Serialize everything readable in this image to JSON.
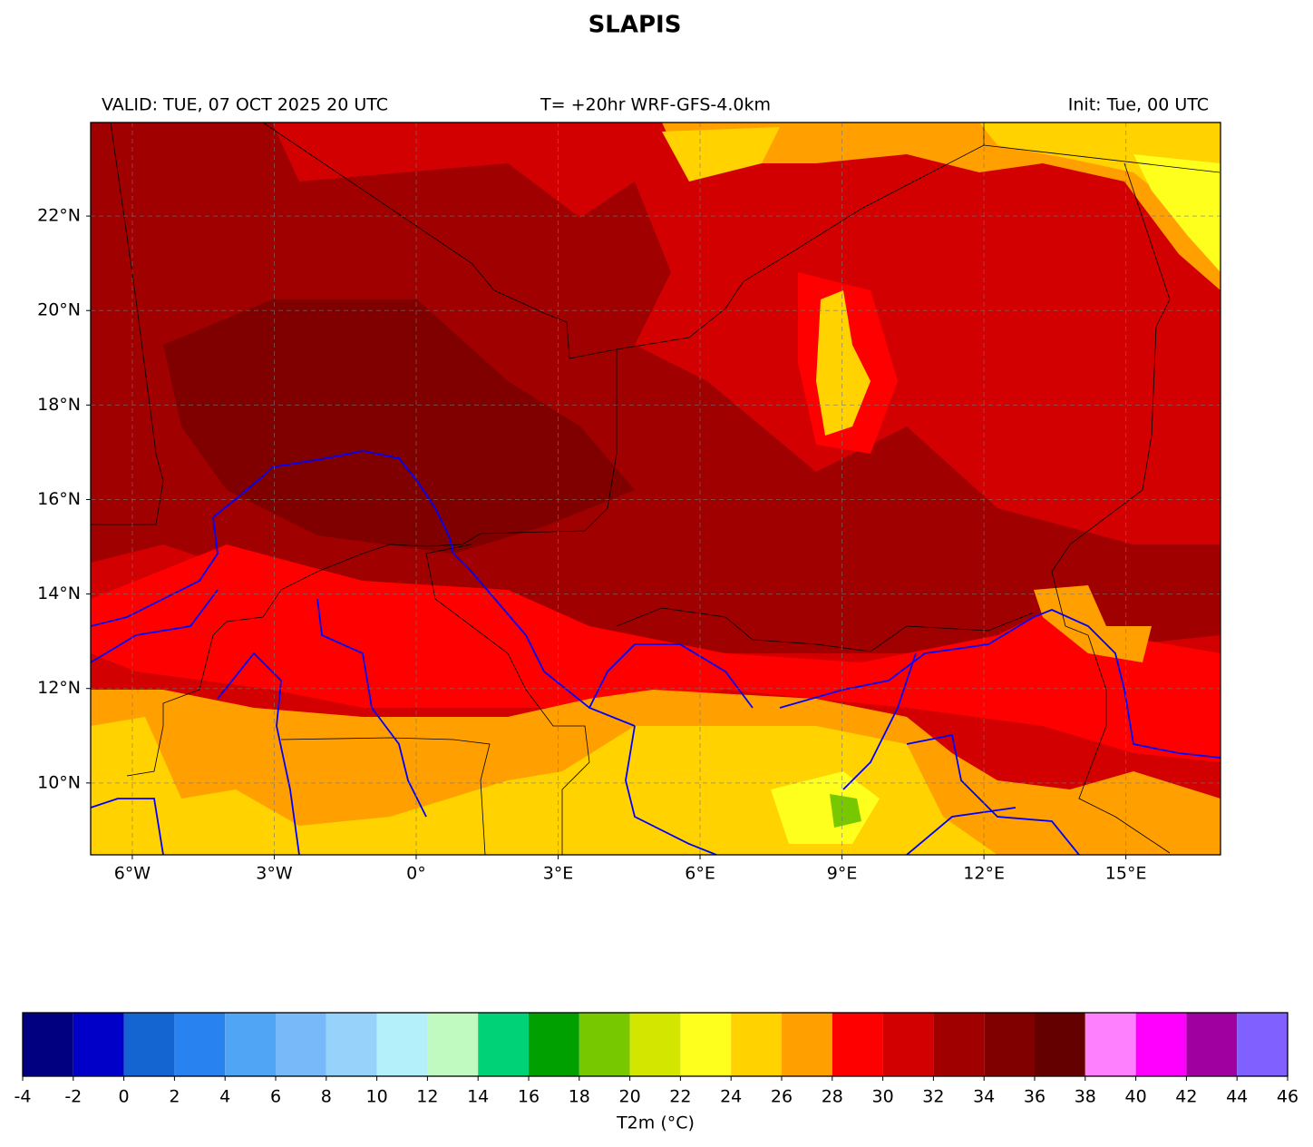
{
  "title": "SLAPIS",
  "header": {
    "left": "VALID: TUE, 07 OCT 2025 20 UTC",
    "center": "T= +20hr WRF-GFS-4.0km",
    "right": "Init: Tue, 00 UTC"
  },
  "map": {
    "lonlim": [
      -6.88,
      17.0
    ],
    "latlim": [
      8.48,
      23.98
    ],
    "lon_ticks": [
      {
        "value": -6,
        "label": "6°W"
      },
      {
        "value": -3,
        "label": "3°W"
      },
      {
        "value": 0,
        "label": "0°"
      },
      {
        "value": 3,
        "label": "3°E"
      },
      {
        "value": 6,
        "label": "6°E"
      },
      {
        "value": 9,
        "label": "9°E"
      },
      {
        "value": 12,
        "label": "12°E"
      },
      {
        "value": 15,
        "label": "15°E"
      }
    ],
    "lat_ticks": [
      {
        "value": 10,
        "label": "10°N"
      },
      {
        "value": 12,
        "label": "12°N"
      },
      {
        "value": 14,
        "label": "14°N"
      },
      {
        "value": 16,
        "label": "16°N"
      },
      {
        "value": 18,
        "label": "18°N"
      },
      {
        "value": 20,
        "label": "20°N"
      },
      {
        "value": 22,
        "label": "22°N"
      }
    ],
    "grid": true
  },
  "colorbar": {
    "label": "T2m (°C)",
    "bounds": [
      -4,
      -2,
      0,
      2,
      4,
      6,
      8,
      10,
      12,
      14,
      16,
      18,
      20,
      22,
      24,
      26,
      28,
      30,
      32,
      34,
      36,
      38,
      40,
      42,
      44,
      46
    ],
    "colors": [
      "#000080",
      "#0000c8",
      "#1464d2",
      "#2882f0",
      "#50a5f5",
      "#78b9fa",
      "#96d2fa",
      "#b4f0fa",
      "#c0fac0",
      "#00d278",
      "#00a000",
      "#78c800",
      "#d2e600",
      "#ffff1e",
      "#ffd200",
      "#ffa000",
      "#ff0000",
      "#d20000",
      "#a00000",
      "#800000",
      "#640000",
      "#ff80ff",
      "#ff00ff",
      "#a000a0",
      "#8060ff"
    ]
  }
}
